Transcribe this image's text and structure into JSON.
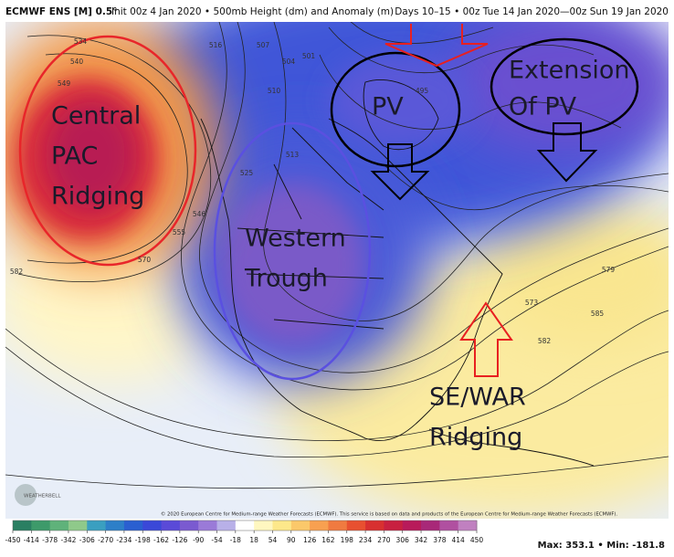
{
  "header": {
    "model": "ECMWF ENS [M] 0.5°",
    "info": "Init 00z 4 Jan 2020 • 500mb Height (dm) and Anomaly (m)",
    "valid": "Days 10–15 • 00z Tue 14 Jan 2020—00z Sun 19 Jan 2020"
  },
  "annotations": [
    {
      "lines": [
        "Central",
        "PAC",
        "Ridging"
      ]
    },
    {
      "lines": [
        "Western",
        "Trough"
      ]
    },
    {
      "lines": [
        "PV"
      ]
    },
    {
      "lines": [
        "Extension",
        "Of PV"
      ]
    },
    {
      "lines": [
        "SE/WAR",
        "Ridging"
      ]
    }
  ],
  "contour_labels": [
    "534",
    "540",
    "549",
    "516",
    "507",
    "504",
    "501",
    "495",
    "510",
    "513",
    "525",
    "546",
    "555",
    "570",
    "582",
    "579",
    "573",
    "585",
    "582"
  ],
  "logo": "WEATHERBELL",
  "copyright": "© 2020 European Centre for Medium-range Weather Forecasts (ECMWF). This service is based on data and products of the European Centre for Medium-range Weather Forecasts (ECMWF).",
  "colorbar": {
    "ticks": [
      -450,
      -414,
      -378,
      -342,
      -306,
      -270,
      -234,
      -198,
      -162,
      -126,
      -90,
      -54,
      -18,
      18,
      54,
      90,
      126,
      162,
      198,
      234,
      270,
      306,
      342,
      378,
      414,
      450
    ],
    "colors": [
      "#2a7f62",
      "#3d9a6a",
      "#5fb27a",
      "#8fc98a",
      "#3a9fc0",
      "#2d7fc8",
      "#2a5fd0",
      "#3a48d8",
      "#5a4ad8",
      "#7a5ad0",
      "#9a7ad8",
      "#b8b0e8",
      "#ffffff",
      "#fff7c0",
      "#fde88a",
      "#fbc86a",
      "#f8a050",
      "#f07a40",
      "#e85030",
      "#d83030",
      "#c82040",
      "#b81a5a",
      "#a82878",
      "#b050a0",
      "#c080c0"
    ]
  },
  "stats": "Max: 353.1 • Min: -181.8"
}
